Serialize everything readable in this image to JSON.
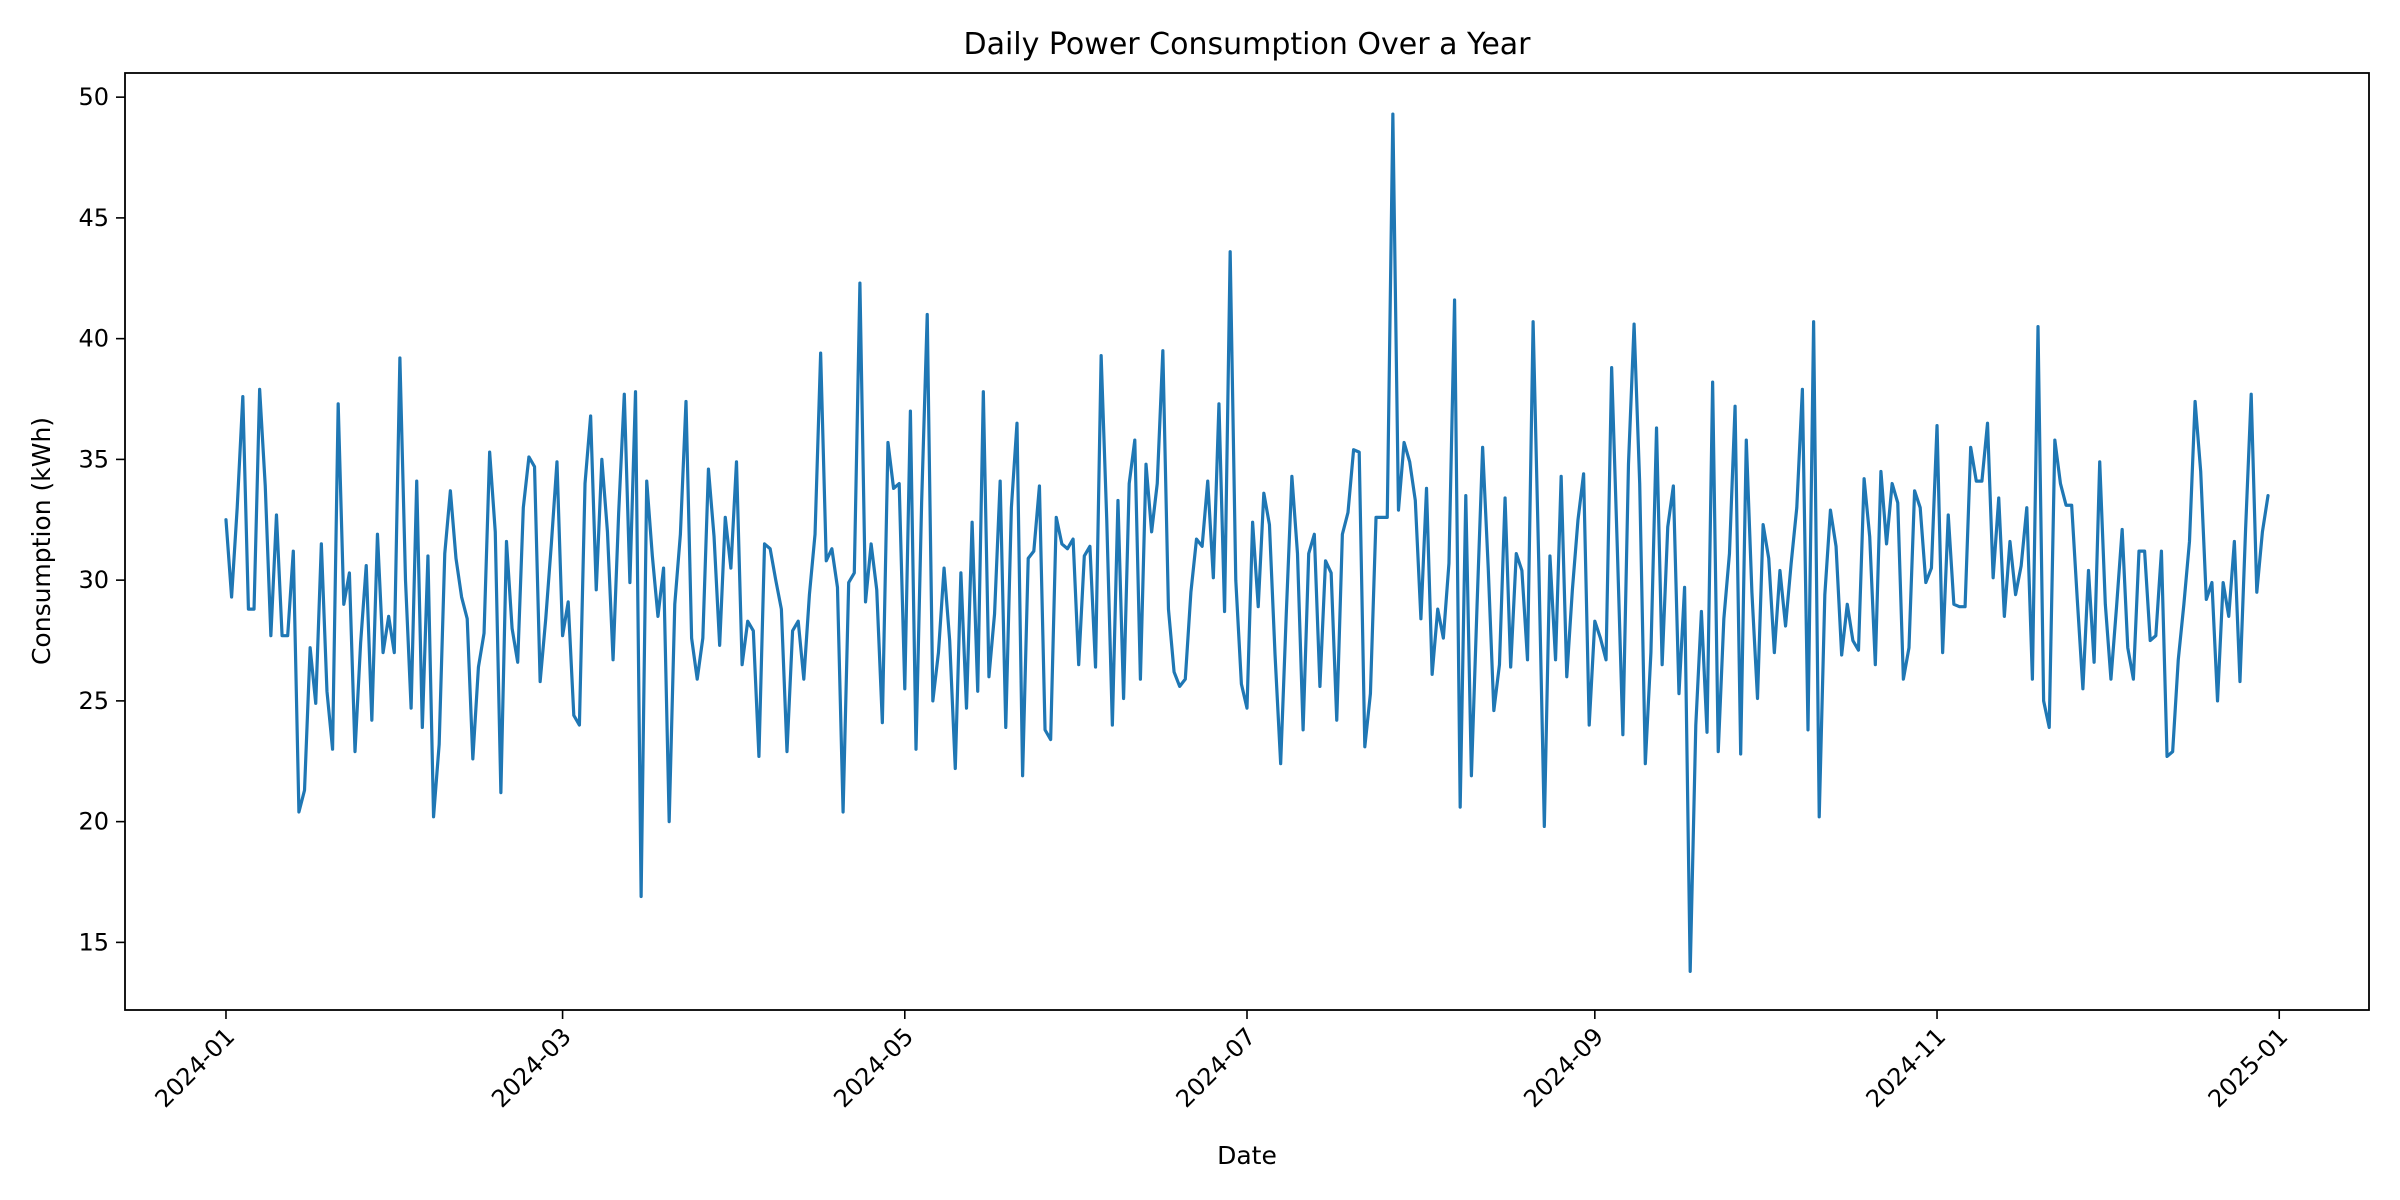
{
  "chart_data": {
    "type": "line",
    "title": "Daily Power Consumption Over a Year",
    "xlabel": "Date",
    "ylabel": "Consumption (kWh)",
    "xlim": [
      "2023-12-14",
      "2025-01-17"
    ],
    "ylim": [
      12.2,
      51.0
    ],
    "x_ticks": [
      "2024-01-01",
      "2024-03-01",
      "2024-05-01",
      "2024-07-01",
      "2024-09-01",
      "2024-11-01",
      "2025-01-01"
    ],
    "x_tick_labels": [
      "2024-01",
      "2024-03",
      "2024-05",
      "2024-07",
      "2024-09",
      "2024-11",
      "2025-01"
    ],
    "y_ticks": [
      15,
      20,
      25,
      30,
      35,
      40,
      45,
      50
    ],
    "y_tick_labels": [
      "15",
      "20",
      "25",
      "30",
      "35",
      "40",
      "45",
      "50"
    ],
    "grid": false,
    "legend": "none",
    "series": [
      {
        "color": "#1f77b4",
        "x_start": "2024-01-01",
        "x_step": "1 day",
        "values": [
          32.5,
          29.3,
          33.0,
          37.6,
          28.8,
          28.8,
          37.9,
          33.9,
          27.7,
          32.7,
          27.7,
          27.7,
          31.2,
          20.4,
          21.3,
          27.2,
          24.9,
          31.5,
          25.4,
          23.0,
          37.3,
          29.0,
          30.3,
          22.9,
          27.4,
          30.6,
          24.2,
          31.9,
          27.0,
          28.5,
          27.0,
          39.2,
          30.0,
          24.7,
          34.1,
          23.9,
          31.0,
          20.2,
          23.2,
          31.1,
          33.7,
          30.9,
          29.3,
          28.4,
          22.6,
          26.4,
          27.8,
          35.3,
          32.0,
          21.2,
          31.6,
          28.0,
          26.6,
          33.0,
          35.1,
          34.7,
          25.8,
          28.4,
          31.5,
          34.9,
          27.7,
          29.1,
          24.4,
          24.0,
          34.0,
          36.8,
          29.6,
          35.0,
          32.0,
          26.7,
          32.8,
          37.7,
          29.9,
          37.8,
          16.9,
          34.1,
          31.0,
          28.5,
          30.5,
          20.0,
          29.0,
          31.9,
          37.4,
          27.6,
          25.9,
          27.6,
          34.6,
          31.8,
          27.3,
          32.6,
          30.5,
          34.9,
          26.5,
          28.3,
          27.9,
          22.7,
          31.5,
          31.3,
          30.0,
          28.8,
          22.9,
          27.9,
          28.3,
          25.9,
          29.4,
          31.9,
          39.4,
          30.8,
          31.3,
          29.7,
          20.4,
          29.9,
          30.3,
          42.3,
          29.1,
          31.5,
          29.6,
          24.1,
          35.7,
          33.8,
          34.0,
          25.5,
          37.0,
          23.0,
          33.2,
          41.0,
          25.0,
          27.0,
          30.5,
          27.5,
          22.2,
          30.3,
          24.7,
          32.4,
          25.4,
          37.8,
          26.0,
          28.6,
          34.1,
          23.9,
          33.0,
          36.5,
          21.9,
          30.9,
          31.2,
          33.9,
          23.8,
          23.4,
          32.6,
          31.5,
          31.3,
          31.7,
          26.5,
          31.0,
          31.4,
          26.4,
          39.3,
          32.5,
          24.0,
          33.3,
          25.1,
          34.0,
          35.8,
          25.9,
          34.8,
          32.0,
          34.0,
          39.5,
          28.8,
          26.2,
          25.6,
          25.9,
          29.5,
          31.7,
          31.4,
          34.1,
          30.1,
          37.3,
          28.7,
          43.6,
          30.0,
          25.7,
          24.7,
          32.4,
          28.9,
          33.6,
          32.3,
          26.9,
          22.4,
          28.6,
          34.3,
          31.1,
          23.8,
          31.1,
          31.9,
          25.6,
          30.8,
          30.3,
          24.2,
          31.9,
          32.8,
          35.4,
          35.3,
          23.1,
          25.3,
          32.6,
          32.6,
          32.6,
          49.3,
          32.9,
          35.7,
          34.9,
          33.3,
          28.4,
          33.8,
          26.1,
          28.8,
          27.6,
          30.7,
          41.6,
          20.6,
          33.5,
          21.9,
          28.9,
          35.5,
          30.5,
          24.6,
          26.5,
          33.4,
          26.4,
          31.1,
          30.4,
          26.7,
          40.7,
          30.8,
          19.8,
          31.0,
          26.7,
          34.3,
          26.0,
          29.6,
          32.5,
          34.4,
          24.0,
          28.3,
          27.6,
          26.7,
          38.8,
          31.4,
          23.6,
          34.8,
          40.6,
          34.0,
          22.4,
          27.0,
          36.3,
          26.5,
          32.2,
          33.9,
          25.3,
          29.7,
          13.8,
          24.0,
          28.7,
          23.7,
          38.2,
          22.9,
          28.4,
          31.1,
          37.2,
          22.8,
          35.8,
          29.5,
          25.1,
          32.3,
          30.9,
          27.0,
          30.4,
          28.1,
          30.7,
          33.0,
          37.9,
          23.8,
          40.7,
          20.2,
          29.4,
          32.9,
          31.4,
          26.9,
          29.0,
          27.5,
          27.1,
          34.2,
          31.8,
          26.5,
          34.5,
          31.5,
          34.0,
          33.2,
          25.9,
          27.2,
          33.7,
          33.0,
          29.9,
          30.5,
          36.4,
          27.0,
          32.7,
          29.0,
          28.9,
          28.9,
          35.5,
          34.1,
          34.1,
          36.5,
          30.1,
          33.4,
          28.5,
          31.6,
          29.4,
          30.6,
          33.0,
          25.9,
          40.5,
          25.0,
          23.9,
          35.8,
          34.0,
          33.1,
          33.1,
          29.2,
          25.5,
          30.4,
          26.6,
          34.9,
          29.0,
          25.9,
          28.9,
          32.1,
          27.2,
          25.9,
          31.2,
          31.2,
          27.5,
          27.7,
          31.2,
          22.7,
          22.9,
          26.7,
          29.0,
          31.6,
          37.4,
          34.5,
          29.2,
          29.9,
          25.0,
          29.9,
          28.5,
          31.6,
          25.8,
          32.1,
          37.7,
          29.5,
          32.0,
          33.5
        ]
      }
    ]
  }
}
